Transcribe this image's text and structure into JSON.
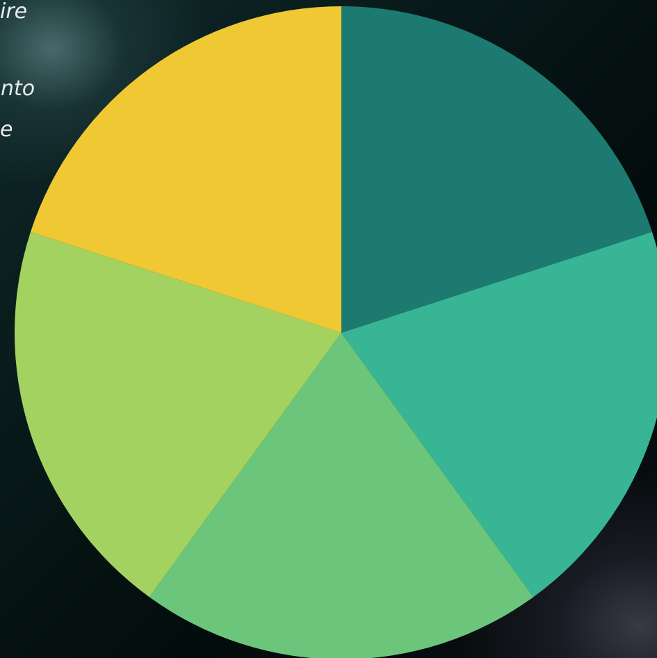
{
  "background_text": {
    "line_1": "ire",
    "line_2": "nto",
    "line_3": "e"
  },
  "chart_data": {
    "type": "pie",
    "title": "",
    "start_angle": "12 o'clock",
    "direction": "clockwise",
    "slices": [
      {
        "value": 20,
        "color": "#1d7a70"
      },
      {
        "value": 20,
        "color": "#38b595"
      },
      {
        "value": 20,
        "color": "#6bc67b"
      },
      {
        "value": 20,
        "color": "#a4d260"
      },
      {
        "value": 20,
        "color": "#efc833"
      }
    ]
  }
}
